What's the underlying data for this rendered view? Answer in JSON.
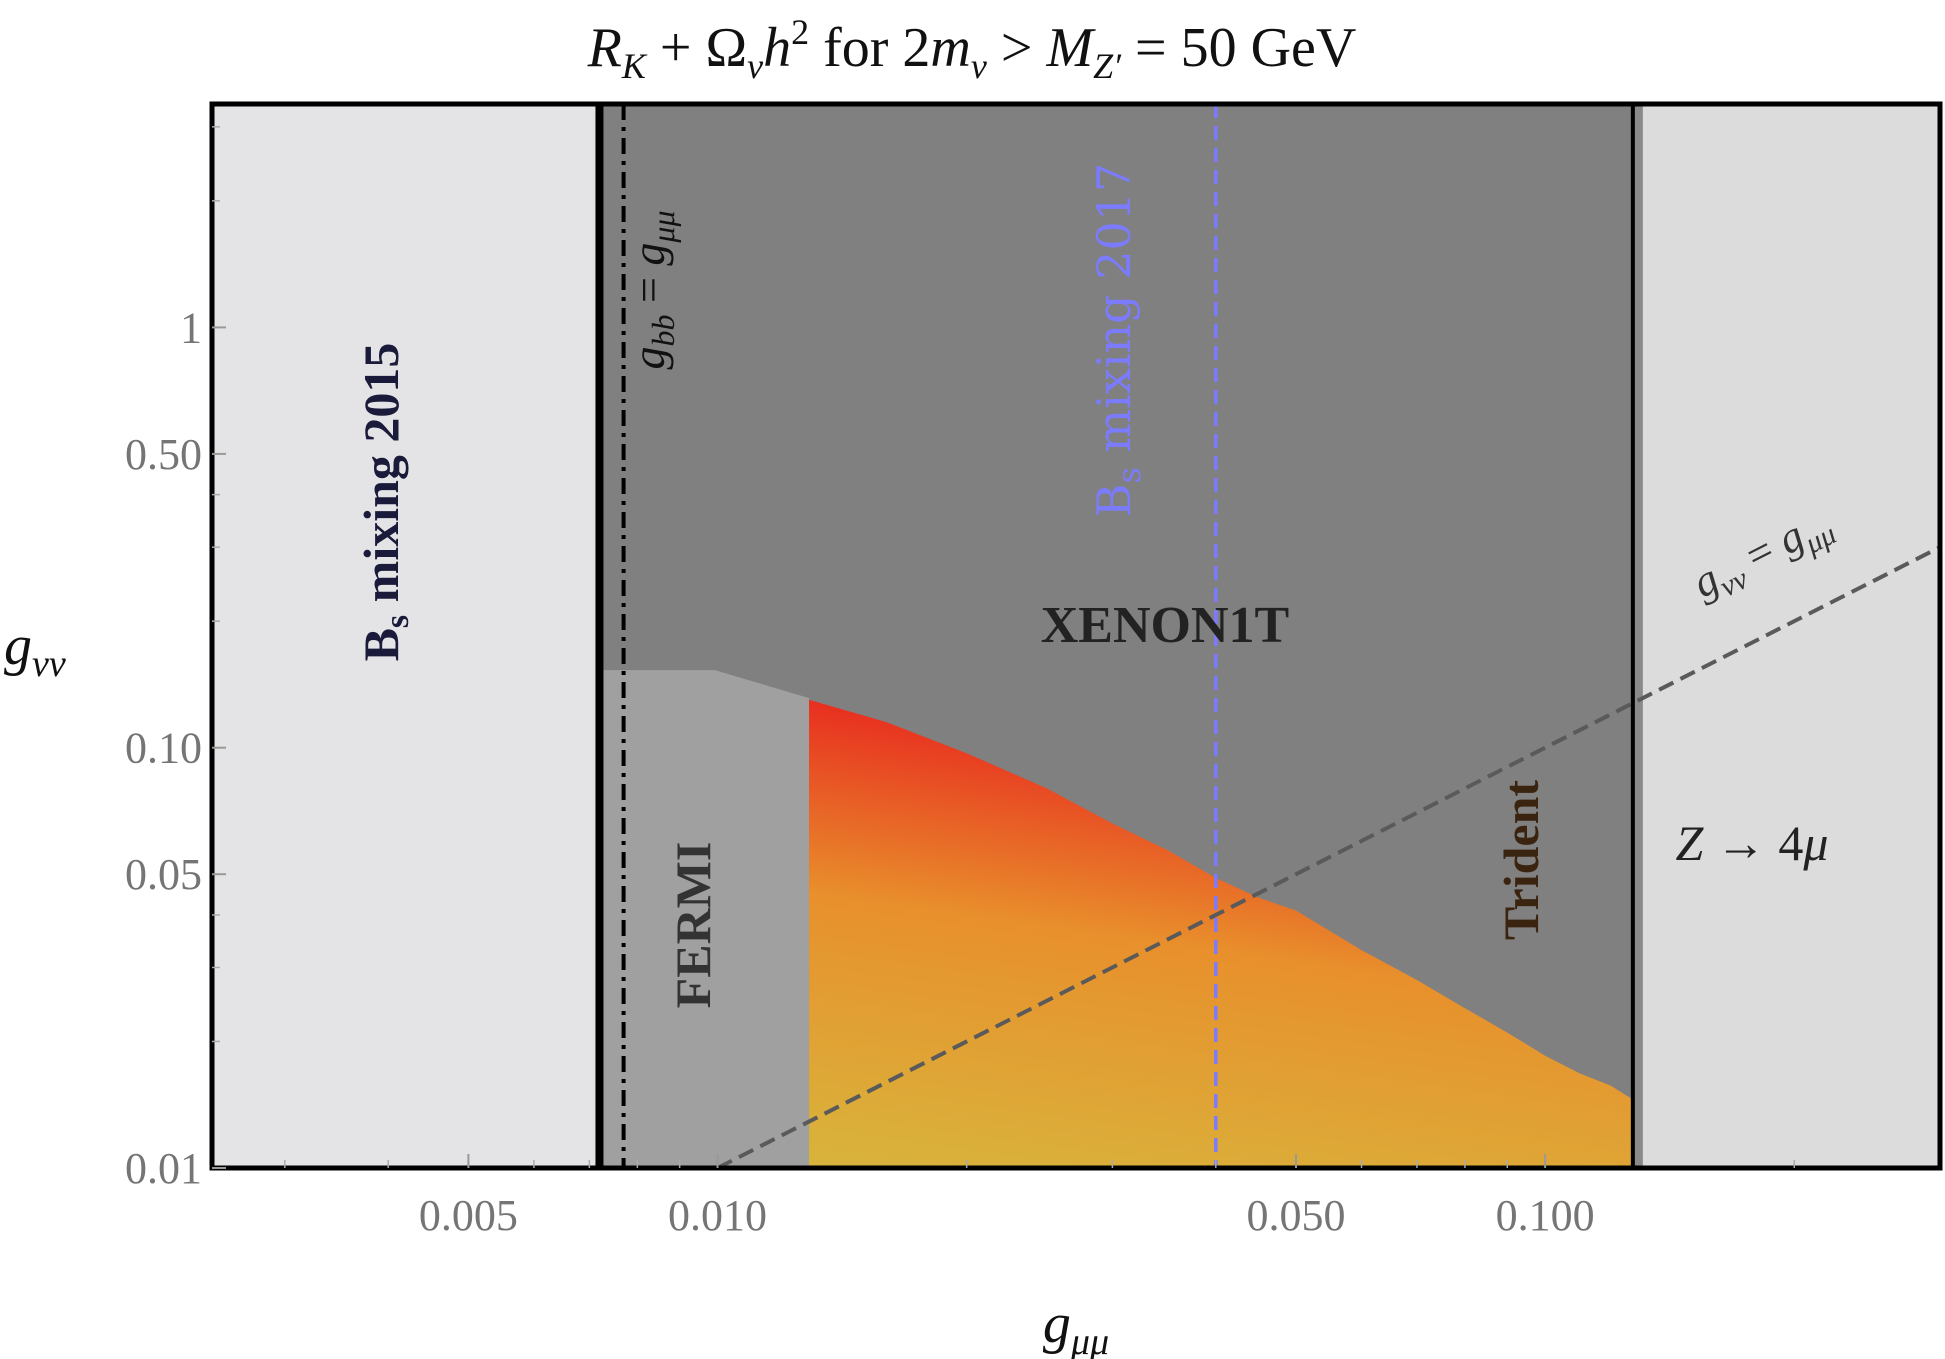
{
  "chart_data": {
    "type": "area",
    "title": "R_K + Ω_ν h² for 2m_ν > M_Z′ = 50 GeV",
    "title_parts": {
      "R": "R",
      "R_sub": "K",
      "plus": " + ",
      "Omega": "Ω",
      "Omega_sub": "ν",
      "h": "h",
      "h_sup": "2",
      "mid": " for 2",
      "m": "m",
      "m_sub": "ν",
      "gt": " > ",
      "M": "M",
      "M_sub": "Z′",
      "tail": " = 50 GeV"
    },
    "xlabel": "g_μμ",
    "xlabel_parts": {
      "base": "g",
      "sub": "μμ"
    },
    "ylabel": "g_νν",
    "ylabel_parts": {
      "base": "g",
      "sub": "νν"
    },
    "x_scale": "log",
    "y_scale": "log",
    "xlim": [
      0.00245,
      0.3
    ],
    "ylim": [
      0.01,
      3.4
    ],
    "x_ticks": [
      {
        "value": 0.005,
        "label": "0.005"
      },
      {
        "value": 0.01,
        "label": "0.010"
      },
      {
        "value": 0.05,
        "label": "0.050"
      },
      {
        "value": 0.1,
        "label": "0.100"
      }
    ],
    "y_ticks": [
      {
        "value": 0.01,
        "label": "0.01"
      },
      {
        "value": 0.05,
        "label": "0.05"
      },
      {
        "value": 0.1,
        "label": "0.10"
      },
      {
        "value": 0.5,
        "label": "0.50"
      },
      {
        "value": 1,
        "label": "1"
      }
    ],
    "grid": false,
    "regions": {
      "bs_mixing_2015": {
        "label_main": "B",
        "label_sub": "s",
        "label_tail": " mixing 2015",
        "x_max": 0.0072,
        "color": "#e4e4e6",
        "text_color": "#1a1a3a"
      },
      "fermi": {
        "label": "FERMI",
        "x_min": 0.0072,
        "x_max": 0.0129,
        "y_max": 0.153,
        "color": "#a0a0a0",
        "text_color": "#333333"
      },
      "xenon1t": {
        "label": "XENON1T",
        "x_min": 0.0072,
        "x_max": 0.128,
        "color": "#808080",
        "text_color": "#222222"
      },
      "trident": {
        "label": "Trident",
        "x": 0.128,
        "color": "#8a8a8a",
        "text_color": "#3a2410"
      },
      "z_to_4mu": {
        "label": "Z → 4μ",
        "label_parts": {
          "Z": "Z",
          "arrow": " → 4",
          "mu": "μ"
        },
        "x_min": 0.131,
        "color": "#dcdcdc",
        "text_color": "#222222"
      }
    },
    "allowed_region": {
      "description_label": "",
      "x_min": 0.0129,
      "x_max": 0.128,
      "upper_boundary": {
        "x": [
          0.0129,
          0.016,
          0.02,
          0.025,
          0.03,
          0.035,
          0.04,
          0.045,
          0.05,
          0.06,
          0.07,
          0.08,
          0.09,
          0.1,
          0.11,
          0.12,
          0.128
        ],
        "y": [
          0.13,
          0.115,
          0.097,
          0.08,
          0.066,
          0.057,
          0.049,
          0.044,
          0.041,
          0.033,
          0.028,
          0.024,
          0.021,
          0.0185,
          0.0168,
          0.0157,
          0.0145
        ]
      },
      "colors": {
        "bottom": "#d8b43c",
        "mid": "#e8902c",
        "top": "#e8201e"
      }
    },
    "lines": {
      "gbb_equals_gmumu": {
        "label_base": "g",
        "label_sub": "bb",
        "label_eq": " = ",
        "label_base2": "g",
        "label_sub2": "μμ",
        "x": 0.0077,
        "style": "dash-dot",
        "color": "#000000"
      },
      "bs_mixing_2017": {
        "label_main": "B",
        "label_sub": "s",
        "label_tail": " mixing 2017",
        "x": 0.04,
        "style": "dashed",
        "color": "#7b7bff"
      },
      "gnunu_equals_gmumu": {
        "label_base": "g",
        "label_sub": "νν",
        "label_eq": " = ",
        "label_base2": "g",
        "label_sub2": "μμ",
        "style": "dashed",
        "color": "#5a5a5a"
      }
    }
  }
}
